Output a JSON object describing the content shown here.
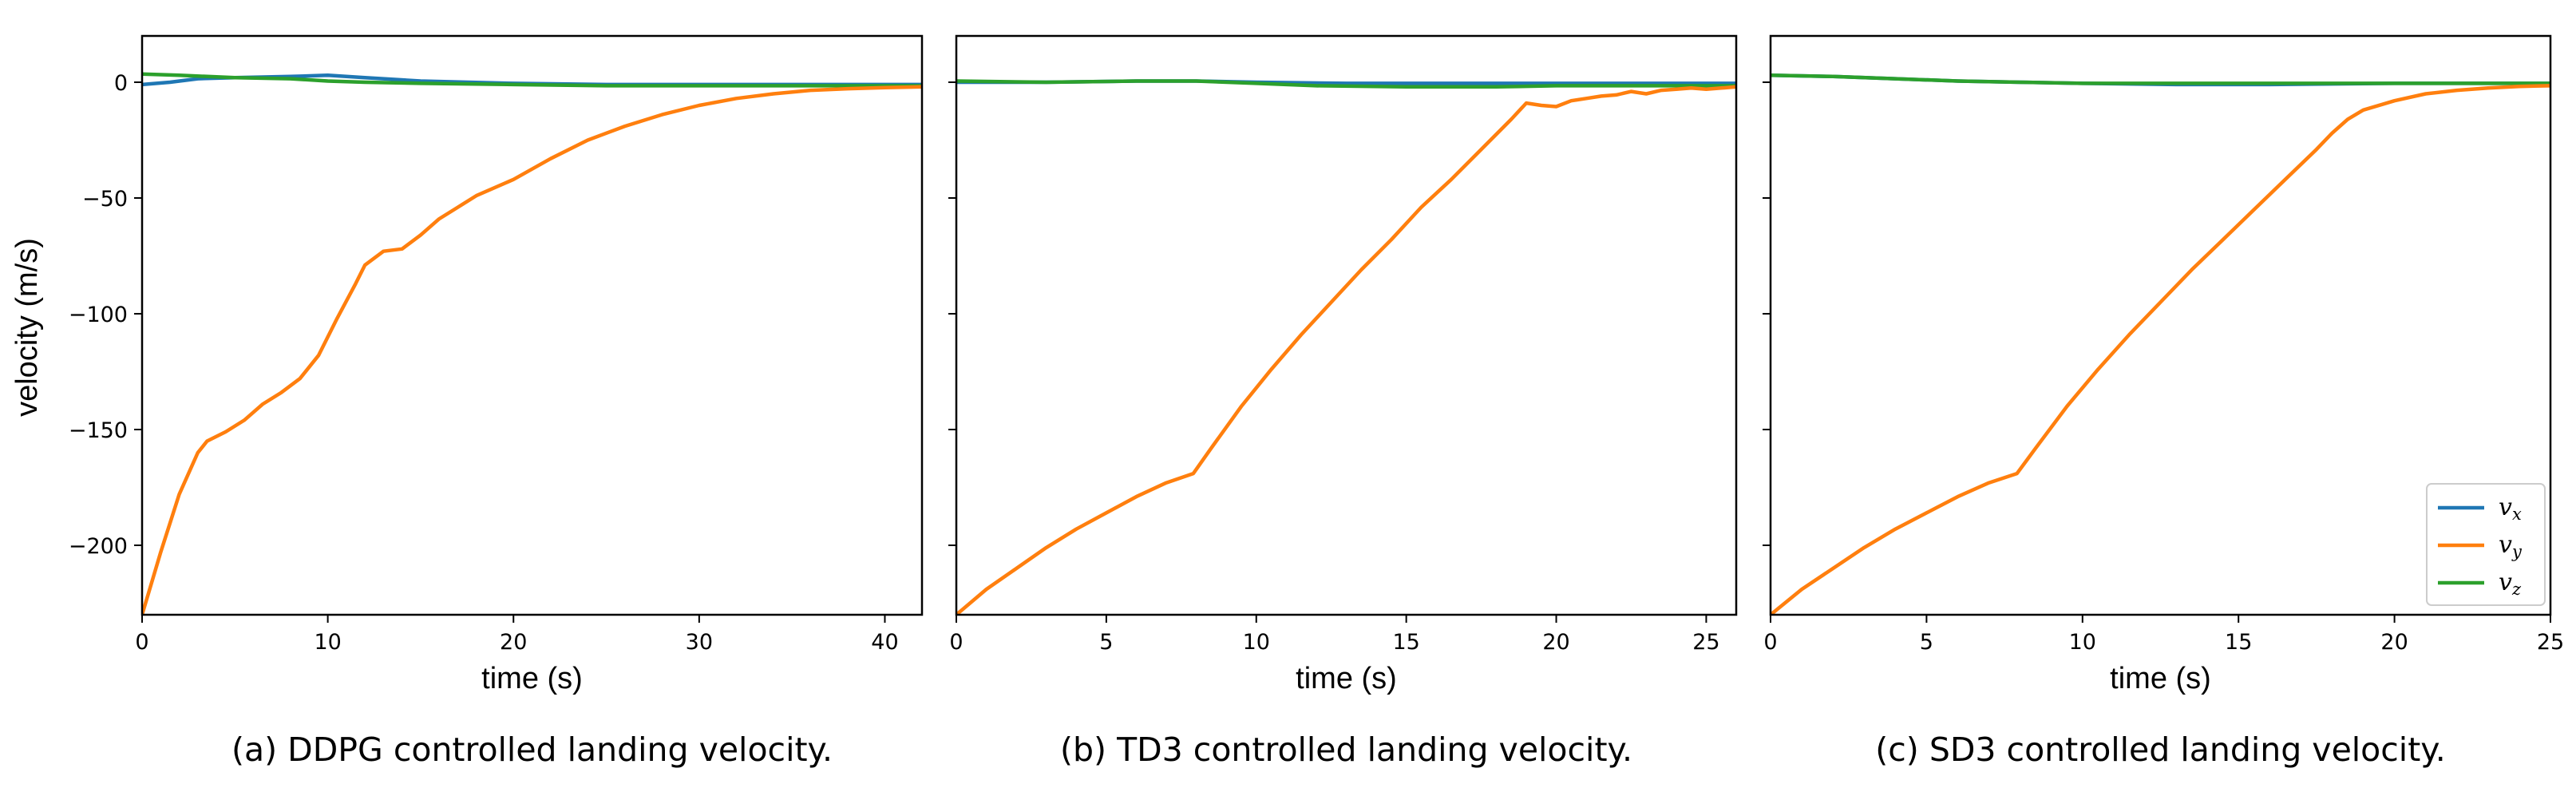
{
  "y_axis_label": "velocity (m/s)",
  "colors": {
    "vx": "#1f77b4",
    "vy": "#ff7f0e",
    "vz": "#2ca02c"
  },
  "legend": [
    {
      "key": "vx",
      "base": "v",
      "sub": "x"
    },
    {
      "key": "vy",
      "base": "v",
      "sub": "y"
    },
    {
      "key": "vz",
      "base": "v",
      "sub": "z"
    }
  ],
  "chart_data": [
    {
      "type": "line",
      "caption": "(a) DDPG controlled landing velocity.",
      "xlabel": "time (s)",
      "ylabel": "velocity (m/s)",
      "xlim": [
        0,
        42
      ],
      "ylim": [
        -230,
        20
      ],
      "xticks": [
        0,
        10,
        20,
        30,
        40
      ],
      "xtick_labels": [
        "0",
        "10",
        "20",
        "30",
        "40"
      ],
      "yticks": [
        0,
        -50,
        -100,
        -150,
        -200
      ],
      "ytick_labels": [
        "0",
        "−50",
        "−100",
        "−150",
        "−200"
      ],
      "legend_position": "none",
      "series": [
        {
          "name": "vx",
          "x": [
            0,
            1.5,
            3,
            5,
            8,
            10,
            12,
            15,
            20,
            25,
            30,
            35,
            42
          ],
          "y": [
            -1,
            0,
            1.5,
            2,
            2.5,
            3,
            2,
            0.5,
            -0.5,
            -1,
            -1,
            -1,
            -1
          ]
        },
        {
          "name": "vy",
          "x": [
            0,
            1,
            2,
            3,
            3.5,
            4.5,
            5.5,
            6.5,
            7.5,
            8.5,
            9.5,
            10.5,
            11.5,
            12,
            13,
            14,
            15,
            16,
            17,
            18,
            20,
            22,
            24,
            26,
            28,
            30,
            32,
            34,
            36,
            38,
            40,
            42
          ],
          "y": [
            -230,
            -203,
            -178,
            -160,
            -155,
            -151,
            -146,
            -139,
            -134,
            -128,
            -118,
            -102,
            -87,
            -79,
            -73,
            -72,
            -66,
            -59,
            -54,
            -49,
            -42,
            -33,
            -25,
            -19,
            -14,
            -10,
            -7,
            -5,
            -3.5,
            -2.8,
            -2.3,
            -2
          ]
        },
        {
          "name": "vz",
          "x": [
            0,
            2,
            5,
            8,
            10,
            12,
            15,
            20,
            25,
            30,
            35,
            42
          ],
          "y": [
            3.5,
            3,
            2,
            1.5,
            0.5,
            0,
            -0.5,
            -1,
            -1.5,
            -1.5,
            -1.5,
            -1.5
          ]
        }
      ]
    },
    {
      "type": "line",
      "caption": "(b) TD3 controlled landing velocity.",
      "xlabel": "time (s)",
      "ylabel": "",
      "xlim": [
        0,
        26
      ],
      "ylim": [
        -230,
        20
      ],
      "xticks": [
        0,
        5,
        10,
        15,
        20,
        25
      ],
      "xtick_labels": [
        "0",
        "5",
        "10",
        "15",
        "20",
        "25"
      ],
      "yticks": [
        0,
        -50,
        -100,
        -150,
        -200
      ],
      "ytick_labels": [],
      "legend_position": "none",
      "series": [
        {
          "name": "vx",
          "x": [
            0,
            3,
            6,
            8,
            10,
            13,
            16,
            20,
            23,
            26
          ],
          "y": [
            0,
            0,
            0.5,
            0.5,
            0,
            -0.5,
            -0.5,
            -0.5,
            -0.5,
            -0.5
          ]
        },
        {
          "name": "vy",
          "x": [
            0,
            1,
            2,
            3,
            4,
            5,
            6,
            7,
            7.9,
            8.5,
            9.5,
            10.5,
            11.5,
            12.5,
            13.5,
            14.5,
            15.5,
            16.5,
            17.5,
            18.5,
            19,
            19.5,
            20,
            20.5,
            21,
            21.5,
            22,
            22.5,
            23,
            23.5,
            24,
            24.5,
            25,
            25.5,
            26
          ],
          "y": [
            -230,
            -219,
            -210,
            -201,
            -193,
            -186,
            -179,
            -173,
            -169,
            -158,
            -140,
            -124,
            -109,
            -95,
            -81,
            -68,
            -54,
            -42,
            -29,
            -16,
            -9,
            -10,
            -10.5,
            -8,
            -7,
            -6,
            -5.5,
            -4,
            -5,
            -3.5,
            -3,
            -2.5,
            -3,
            -2.5,
            -2
          ]
        },
        {
          "name": "vz",
          "x": [
            0,
            3,
            6,
            8,
            10,
            12,
            15,
            18,
            20,
            23,
            26
          ],
          "y": [
            0.5,
            0,
            0.5,
            0.5,
            -0.5,
            -1.5,
            -2,
            -2,
            -1.5,
            -1.5,
            -1.5
          ]
        }
      ]
    },
    {
      "type": "line",
      "caption": "(c) SD3 controlled landing velocity.",
      "xlabel": "time (s)",
      "ylabel": "",
      "xlim": [
        0,
        25
      ],
      "ylim": [
        -230,
        20
      ],
      "xticks": [
        0,
        5,
        10,
        15,
        20,
        25
      ],
      "xtick_labels": [
        "0",
        "5",
        "10",
        "15",
        "20",
        "25"
      ],
      "yticks": [
        0,
        -50,
        -100,
        -150,
        -200
      ],
      "ytick_labels": [],
      "legend_position": "lower right",
      "series": [
        {
          "name": "vx",
          "x": [
            0,
            2,
            4,
            6,
            8,
            10,
            13,
            16,
            20,
            25
          ],
          "y": [
            3,
            2.5,
            1.5,
            0.5,
            0,
            -0.5,
            -1,
            -1,
            -0.5,
            -0.5
          ]
        },
        {
          "name": "vy",
          "x": [
            0,
            1,
            2,
            3,
            4,
            5,
            6,
            7,
            7.9,
            8.5,
            9.5,
            10.5,
            11.5,
            12.5,
            13.5,
            14.5,
            15.5,
            16.5,
            17.5,
            18,
            18.5,
            19,
            20,
            21,
            22,
            23,
            24,
            25
          ],
          "y": [
            -230,
            -219,
            -210,
            -201,
            -193,
            -186,
            -179,
            -173,
            -169,
            -158,
            -140,
            -124,
            -109,
            -95,
            -81,
            -68,
            -55,
            -42,
            -29,
            -22,
            -16,
            -12,
            -8,
            -5,
            -3.5,
            -2.5,
            -1.8,
            -1.5
          ]
        },
        {
          "name": "vz",
          "x": [
            0,
            2,
            4,
            6,
            8,
            10,
            13,
            16,
            20,
            25
          ],
          "y": [
            3,
            2.5,
            1.5,
            0.5,
            0,
            -0.5,
            -0.5,
            -0.5,
            -0.5,
            -0.5
          ]
        }
      ]
    }
  ]
}
